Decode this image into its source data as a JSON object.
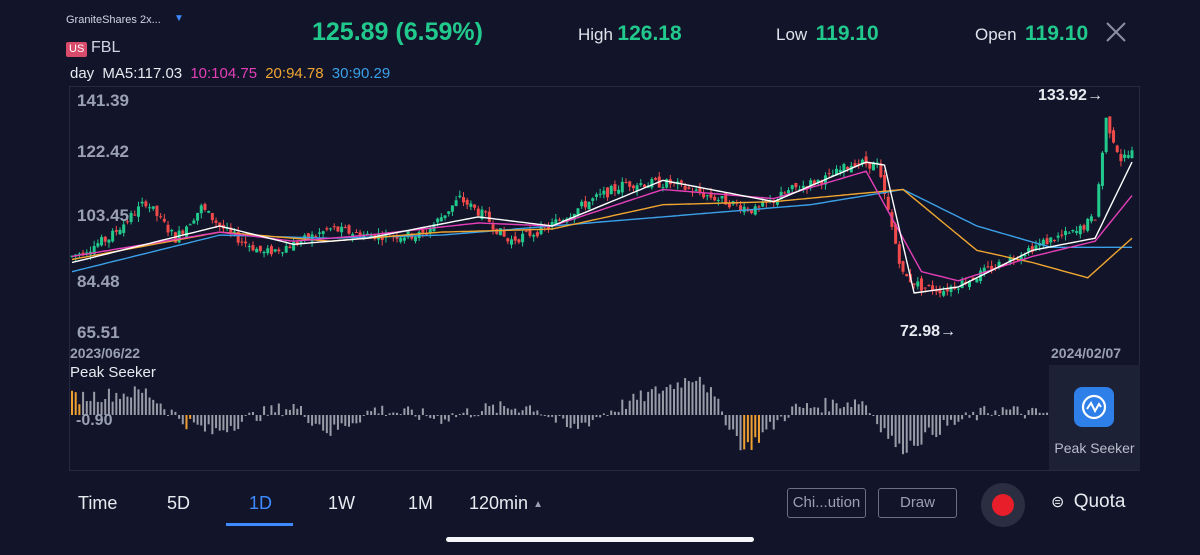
{
  "header": {
    "issuer": "GraniteShares 2x...",
    "market_badge": "US",
    "ticker": "FBL",
    "price": "125.89",
    "change_pct": "(6.59%)",
    "high_label": "High",
    "high_value": "126.18",
    "low_label": "Low",
    "low_value": "119.10",
    "open_label": "Open",
    "open_value": "119.10"
  },
  "indicators": {
    "period": "day",
    "ma5": "MA5:117.03",
    "ma10": "10:104.75",
    "ma20": "20:94.78",
    "ma30": "30:90.29",
    "colors": {
      "ma5": "#ffffff",
      "ma10": "#e53fb8",
      "ma20": "#f0a630",
      "ma30": "#3aa0e8",
      "up": "#22c98d",
      "down": "#f04a4a",
      "sequence": "#b97a52"
    }
  },
  "price_axis": [
    "141.39",
    "122.42",
    "103.45",
    "84.48",
    "65.51"
  ],
  "callouts": {
    "high": "133.92→",
    "low": "72.98→"
  },
  "dates": {
    "start": "2023/06/22",
    "end": "2024/02/07"
  },
  "peak_seeker": {
    "title": "Peak Seeker",
    "axis_label": "-0.90",
    "panel_label": "Peak Seeker"
  },
  "chart_data": {
    "type": "candlestick",
    "ylim": [
      65.51,
      141.39
    ],
    "y_ticks": [
      141.39,
      122.42,
      103.45,
      84.48,
      65.51
    ],
    "x_range": [
      "2023/06/22",
      "2024/02/07"
    ],
    "trend_anchors": [
      [
        0,
        90
      ],
      [
        10,
        96
      ],
      [
        20,
        108
      ],
      [
        28,
        96
      ],
      [
        35,
        106
      ],
      [
        42,
        98
      ],
      [
        52,
        91
      ],
      [
        60,
        94
      ],
      [
        70,
        99
      ],
      [
        80,
        97
      ],
      [
        95,
        97
      ],
      [
        105,
        109
      ],
      [
        112,
        103
      ],
      [
        118,
        95
      ],
      [
        128,
        99
      ],
      [
        140,
        108
      ],
      [
        150,
        114
      ],
      [
        162,
        114
      ],
      [
        172,
        110
      ],
      [
        185,
        105
      ],
      [
        195,
        112
      ],
      [
        205,
        116
      ],
      [
        212,
        121
      ],
      [
        218,
        120
      ],
      [
        225,
        84
      ],
      [
        230,
        80
      ],
      [
        236,
        79
      ],
      [
        244,
        83
      ],
      [
        252,
        88
      ],
      [
        260,
        93
      ],
      [
        266,
        96
      ],
      [
        272,
        98
      ],
      [
        277,
        103
      ],
      [
        280,
        135
      ],
      [
        284,
        122
      ],
      [
        287,
        124
      ]
    ],
    "oscillator_anchors": [
      [
        0,
        0.3
      ],
      [
        20,
        0.4
      ],
      [
        30,
        -0.1
      ],
      [
        38,
        -0.3
      ],
      [
        50,
        0.0
      ],
      [
        60,
        0.15
      ],
      [
        70,
        -0.3
      ],
      [
        82,
        0.1
      ],
      [
        100,
        -0.05
      ],
      [
        112,
        0.1
      ],
      [
        125,
        0.15
      ],
      [
        135,
        -0.25
      ],
      [
        150,
        0.2
      ],
      [
        170,
        0.7
      ],
      [
        182,
        -0.6
      ],
      [
        195,
        0.1
      ],
      [
        214,
        0.25
      ],
      [
        224,
        -0.6
      ],
      [
        236,
        -0.2
      ],
      [
        250,
        0.1
      ],
      [
        260,
        0.02
      ],
      [
        287,
        0.1
      ]
    ],
    "highlighted_bars": [
      0,
      1,
      2,
      31,
      32,
      182,
      183,
      184,
      185,
      186
    ],
    "ma_series": {
      "ma5": [
        [
          0,
          88
        ],
        [
          40,
          100
        ],
        [
          60,
          94
        ],
        [
          80,
          96
        ],
        [
          110,
          103
        ],
        [
          130,
          100
        ],
        [
          160,
          115
        ],
        [
          190,
          108
        ],
        [
          215,
          121
        ],
        [
          220,
          120
        ],
        [
          228,
          78
        ],
        [
          240,
          80
        ],
        [
          260,
          92
        ],
        [
          277,
          96
        ],
        [
          287,
          121
        ]
      ],
      "ma10": [
        [
          0,
          90
        ],
        [
          40,
          98
        ],
        [
          60,
          95
        ],
        [
          80,
          97
        ],
        [
          110,
          101
        ],
        [
          130,
          100
        ],
        [
          160,
          112
        ],
        [
          190,
          109
        ],
        [
          215,
          118
        ],
        [
          230,
          85
        ],
        [
          240,
          82
        ],
        [
          260,
          90
        ],
        [
          277,
          95
        ],
        [
          287,
          110
        ]
      ],
      "ma20": [
        [
          0,
          89
        ],
        [
          40,
          98
        ],
        [
          70,
          95
        ],
        [
          100,
          98
        ],
        [
          130,
          99
        ],
        [
          160,
          107
        ],
        [
          190,
          108
        ],
        [
          225,
          112
        ],
        [
          245,
          92
        ],
        [
          260,
          88
        ],
        [
          275,
          83
        ],
        [
          287,
          96
        ]
      ],
      "ma30": [
        [
          0,
          85
        ],
        [
          40,
          97
        ],
        [
          70,
          96
        ],
        [
          100,
          97
        ],
        [
          130,
          100
        ],
        [
          160,
          103
        ],
        [
          200,
          107
        ],
        [
          225,
          112
        ],
        [
          245,
          100
        ],
        [
          265,
          93
        ],
        [
          287,
          93
        ]
      ]
    }
  },
  "toolbar": {
    "tabs": [
      "Time",
      "5D",
      "1D",
      "1W",
      "1M",
      "120min"
    ],
    "chip_button": "Chi...ution",
    "draw_button": "Draw",
    "quota": "Quota"
  }
}
